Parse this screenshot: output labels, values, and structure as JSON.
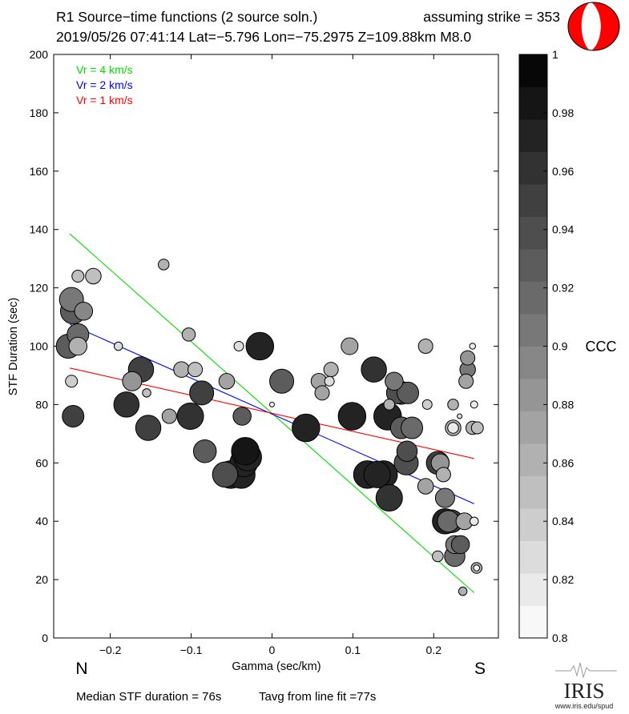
{
  "header": {
    "line1_left": "R1 Source−time functions (2 source soln.)",
    "line1_right": "assuming strike = 353",
    "line2": "2019/05/26 07:41:14  Lat=−5.796 Lon=−75.2975  Z=109.88km  M8.0"
  },
  "footer": {
    "median": "Median STF duration = 76s",
    "tavg": "Tavg from line fit =77s",
    "logo_text": "IRIS",
    "logo_url": "www.iris.edu/spud"
  },
  "direction_labels": {
    "left": "N",
    "right": "S"
  },
  "colorbar": {
    "label": "CCC",
    "range": [
      0.8,
      1.0
    ],
    "ticks": [
      1,
      0.98,
      0.96,
      0.94,
      0.92,
      0.9,
      0.88,
      0.86,
      0.84,
      0.82,
      0.8
    ],
    "tick_labels": [
      "1",
      "0.98",
      "0.96",
      "0.94",
      "0.92",
      "0.9",
      "0.88",
      "0.86",
      "0.84",
      "0.82",
      "0.8"
    ],
    "steps": 18
  },
  "chart_data": {
    "type": "scatter",
    "xlabel": "Gamma (sec/km)",
    "ylabel": "STF Duration (sec)",
    "xlim": [
      -0.27,
      0.28
    ],
    "ylim": [
      0,
      200
    ],
    "x_ticks": [
      -0.2,
      -0.1,
      0,
      0.1,
      0.2
    ],
    "x_tick_labels": [
      "−0.2",
      "−0.1",
      "0",
      "0.1",
      "0.2"
    ],
    "y_ticks": [
      0,
      20,
      40,
      60,
      80,
      100,
      120,
      140,
      160,
      180,
      200
    ],
    "y_tick_labels": [
      "0",
      "20",
      "40",
      "60",
      "80",
      "100",
      "120",
      "140",
      "160",
      "180",
      "200"
    ],
    "fit_lines": [
      {
        "name": "Vr = 4 km/s",
        "color": "#00dd00",
        "x": [
          -0.25,
          0.25
        ],
        "y": [
          138.5,
          15.5
        ]
      },
      {
        "name": "Vr = 2 km/s",
        "color": "#0000ff",
        "x": [
          -0.25,
          0.25
        ],
        "y": [
          107.5,
          46
        ]
      },
      {
        "name": "Vr = 1 km/s",
        "color": "#ff0000",
        "x": [
          -0.25,
          0.25
        ],
        "y": [
          92.5,
          61.5
        ]
      }
    ],
    "legend": [
      "Vr = 4 km/s",
      "Vr = 2 km/s",
      "Vr = 1 km/s"
    ],
    "legend_colors": [
      "#00dd00",
      "#0000ff",
      "#ff0000"
    ],
    "points": [
      {
        "x": -0.248,
        "y": 116,
        "ccc": 0.9,
        "s": 2
      },
      {
        "x": -0.24,
        "y": 124,
        "ccc": 0.85,
        "s": 1
      },
      {
        "x": -0.221,
        "y": 124,
        "ccc": 0.85,
        "s": 1.3
      },
      {
        "x": -0.233,
        "y": 112,
        "ccc": 0.89,
        "s": 1.5
      },
      {
        "x": -0.246,
        "y": 112,
        "ccc": 0.93,
        "s": 2.1
      },
      {
        "x": -0.24,
        "y": 104,
        "ccc": 0.92,
        "s": 1.8
      },
      {
        "x": -0.252,
        "y": 100,
        "ccc": 0.93,
        "s": 2
      },
      {
        "x": -0.24,
        "y": 100,
        "ccc": 0.86,
        "s": 1.5
      },
      {
        "x": -0.248,
        "y": 88,
        "ccc": 0.84,
        "s": 1
      },
      {
        "x": -0.246,
        "y": 76,
        "ccc": 0.95,
        "s": 1.8
      },
      {
        "x": -0.19,
        "y": 100,
        "ccc": 0.83,
        "s": 0.7
      },
      {
        "x": -0.173,
        "y": 88,
        "ccc": 0.88,
        "s": 1.6
      },
      {
        "x": -0.162,
        "y": 92,
        "ccc": 0.95,
        "s": 2.1
      },
      {
        "x": -0.18,
        "y": 80,
        "ccc": 0.96,
        "s": 2.1
      },
      {
        "x": -0.155,
        "y": 84,
        "ccc": 0.85,
        "s": 0.7
      },
      {
        "x": -0.153,
        "y": 72,
        "ccc": 0.95,
        "s": 2.1
      },
      {
        "x": -0.134,
        "y": 128,
        "ccc": 0.86,
        "s": 0.9
      },
      {
        "x": -0.127,
        "y": 76,
        "ccc": 0.87,
        "s": 1.2
      },
      {
        "x": -0.103,
        "y": 104,
        "ccc": 0.86,
        "s": 1.1
      },
      {
        "x": -0.112,
        "y": 92,
        "ccc": 0.86,
        "s": 1.3
      },
      {
        "x": -0.095,
        "y": 92,
        "ccc": 0.85,
        "s": 1.2
      },
      {
        "x": -0.101,
        "y": 76,
        "ccc": 0.965,
        "s": 2.2
      },
      {
        "x": -0.087,
        "y": 84,
        "ccc": 0.95,
        "s": 2
      },
      {
        "x": -0.083,
        "y": 64,
        "ccc": 0.93,
        "s": 1.9
      },
      {
        "x": -0.056,
        "y": 88,
        "ccc": 0.87,
        "s": 1.3
      },
      {
        "x": -0.041,
        "y": 100,
        "ccc": 0.83,
        "s": 0.8
      },
      {
        "x": -0.037,
        "y": 76,
        "ccc": 0.93,
        "s": 1.5
      },
      {
        "x": -0.058,
        "y": 56,
        "ccc": 0.94,
        "s": 2.1
      },
      {
        "x": -0.051,
        "y": 56,
        "ccc": 0.97,
        "s": 2.3
      },
      {
        "x": -0.038,
        "y": 56,
        "ccc": 0.97,
        "s": 2.3
      },
      {
        "x": -0.035,
        "y": 60,
        "ccc": 0.97,
        "s": 2.3
      },
      {
        "x": -0.03,
        "y": 62,
        "ccc": 0.975,
        "s": 2.3
      },
      {
        "x": -0.033,
        "y": 64,
        "ccc": 0.985,
        "s": 2.3
      },
      {
        "x": -0.015,
        "y": 100,
        "ccc": 0.975,
        "s": 2.3
      },
      {
        "x": 0.0,
        "y": 80,
        "ccc": 0.81,
        "s": 0.4
      },
      {
        "x": 0.012,
        "y": 88,
        "ccc": 0.93,
        "s": 2
      },
      {
        "x": 0.042,
        "y": 72,
        "ccc": 0.97,
        "s": 2.3
      },
      {
        "x": 0.058,
        "y": 88,
        "ccc": 0.87,
        "s": 1.3
      },
      {
        "x": 0.062,
        "y": 84,
        "ccc": 0.87,
        "s": 1.2
      },
      {
        "x": 0.073,
        "y": 92,
        "ccc": 0.86,
        "s": 1.2
      },
      {
        "x": 0.071,
        "y": 88,
        "ccc": 0.83,
        "s": 0.8
      },
      {
        "x": 0.096,
        "y": 100,
        "ccc": 0.87,
        "s": 1.4
      },
      {
        "x": 0.099,
        "y": 76,
        "ccc": 0.975,
        "s": 2.3
      },
      {
        "x": 0.126,
        "y": 92,
        "ccc": 0.96,
        "s": 2.1
      },
      {
        "x": 0.151,
        "y": 88,
        "ccc": 0.91,
        "s": 1.5
      },
      {
        "x": 0.155,
        "y": 84,
        "ccc": 0.94,
        "s": 1.8
      },
      {
        "x": 0.16,
        "y": 84,
        "ccc": 0.93,
        "s": 1.9
      },
      {
        "x": 0.145,
        "y": 80,
        "ccc": 0.86,
        "s": 0.9
      },
      {
        "x": 0.168,
        "y": 84,
        "ccc": 0.93,
        "s": 1.8
      },
      {
        "x": 0.143,
        "y": 76,
        "ccc": 0.97,
        "s": 2.3
      },
      {
        "x": 0.16,
        "y": 72,
        "ccc": 0.93,
        "s": 1.8
      },
      {
        "x": 0.173,
        "y": 72,
        "ccc": 0.92,
        "s": 1.8
      },
      {
        "x": 0.167,
        "y": 64,
        "ccc": 0.94,
        "s": 1.7
      },
      {
        "x": 0.166,
        "y": 60,
        "ccc": 0.94,
        "s": 2
      },
      {
        "x": 0.118,
        "y": 56,
        "ccc": 0.97,
        "s": 2.3
      },
      {
        "x": 0.13,
        "y": 56,
        "ccc": 0.97,
        "s": 2.2
      },
      {
        "x": 0.138,
        "y": 56,
        "ccc": 0.975,
        "s": 2.3
      },
      {
        "x": 0.145,
        "y": 48,
        "ccc": 0.96,
        "s": 2.2
      },
      {
        "x": 0.19,
        "y": 100,
        "ccc": 0.86,
        "s": 1.2
      },
      {
        "x": 0.192,
        "y": 80,
        "ccc": 0.84,
        "s": 0.8
      },
      {
        "x": 0.19,
        "y": 52,
        "ccc": 0.87,
        "s": 1.3
      },
      {
        "x": 0.205,
        "y": 60,
        "ccc": 0.95,
        "s": 1.9
      },
      {
        "x": 0.208,
        "y": 60,
        "ccc": 0.88,
        "s": 1.5
      },
      {
        "x": 0.212,
        "y": 56,
        "ccc": 0.86,
        "s": 1.2
      },
      {
        "x": 0.214,
        "y": 48,
        "ccc": 0.91,
        "s": 1.6
      },
      {
        "x": 0.214,
        "y": 40,
        "ccc": 0.97,
        "s": 2.1
      },
      {
        "x": 0.222,
        "y": 40,
        "ccc": 0.95,
        "s": 1.9
      },
      {
        "x": 0.218,
        "y": 40,
        "ccc": 0.92,
        "s": 1.8
      },
      {
        "x": 0.238,
        "y": 40,
        "ccc": 0.87,
        "s": 1.4
      },
      {
        "x": 0.226,
        "y": 32,
        "ccc": 0.9,
        "s": 1.5
      },
      {
        "x": 0.233,
        "y": 32,
        "ccc": 0.93,
        "s": 1.5
      },
      {
        "x": 0.226,
        "y": 28,
        "ccc": 0.92,
        "s": 1.7
      },
      {
        "x": 0.205,
        "y": 28,
        "ccc": 0.85,
        "s": 0.9
      },
      {
        "x": 0.236,
        "y": 16,
        "ccc": 0.86,
        "s": 0.7
      },
      {
        "x": 0.224,
        "y": 80,
        "ccc": 0.86,
        "s": 0.9
      },
      {
        "x": 0.232,
        "y": 76,
        "ccc": 0.83,
        "s": 0.4
      },
      {
        "x": 0.224,
        "y": 72,
        "ccc": 0.86,
        "s": 1.3
      },
      {
        "x": 0.224,
        "y": 72,
        "ccc": 0.82,
        "s": 0.9
      },
      {
        "x": 0.248,
        "y": 72,
        "ccc": 0.86,
        "s": 1.1
      },
      {
        "x": 0.254,
        "y": 72,
        "ccc": 0.85,
        "s": 1
      },
      {
        "x": 0.248,
        "y": 100,
        "ccc": 0.82,
        "s": 0.5
      },
      {
        "x": 0.242,
        "y": 96,
        "ccc": 0.88,
        "s": 1.2
      },
      {
        "x": 0.242,
        "y": 92,
        "ccc": 0.9,
        "s": 1.3
      },
      {
        "x": 0.24,
        "y": 88,
        "ccc": 0.87,
        "s": 1.2
      },
      {
        "x": 0.25,
        "y": 80,
        "ccc": 0.82,
        "s": 0.6
      },
      {
        "x": 0.25,
        "y": 40,
        "ccc": 0.82,
        "s": 0.7
      },
      {
        "x": 0.253,
        "y": 24,
        "ccc": 0.86,
        "s": 0.9
      },
      {
        "x": 0.253,
        "y": 24,
        "ccc": 0.81,
        "s": 0.5
      }
    ]
  }
}
